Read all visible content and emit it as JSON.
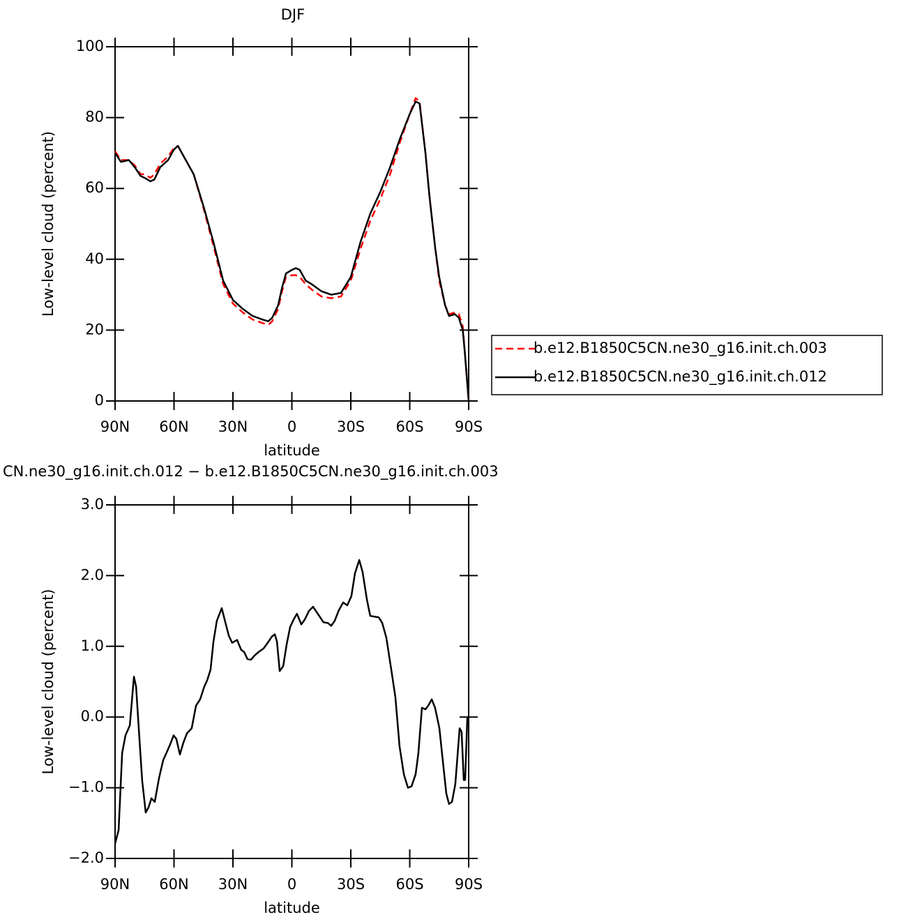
{
  "chart_data": [
    {
      "type": "line",
      "title": "DJF",
      "ylabel": "Low-level cloud (percent)",
      "xlabel": "latitude",
      "x": [
        90,
        87,
        83,
        80,
        77,
        75,
        72,
        70,
        67,
        63,
        60,
        58,
        55,
        50,
        45,
        40,
        35,
        30,
        25,
        20,
        15,
        12,
        10,
        7,
        5,
        3,
        0,
        -2,
        -4,
        -7,
        -10,
        -15,
        -20,
        -25,
        -30,
        -35,
        -40,
        -45,
        -50,
        -55,
        -60,
        -63,
        -65,
        -68,
        -70,
        -73,
        -75,
        -78,
        -80,
        -83,
        -85,
        -87,
        -88,
        -90
      ],
      "series": [
        {
          "name": "b.e12.B1850C5CN.ne30_g16.init.ch.003",
          "color": "#ff0000",
          "linestyle": "dashed",
          "values": [
            70.5,
            68,
            68,
            66.5,
            64,
            64,
            63,
            64,
            67,
            69,
            71.5,
            72,
            69,
            64,
            54.5,
            44,
            33,
            27.5,
            25,
            23,
            22,
            21.5,
            22.5,
            26,
            31,
            35,
            35.5,
            35.5,
            35,
            33,
            31.5,
            29.5,
            29,
            29.5,
            34,
            43,
            51,
            57,
            64,
            73,
            81,
            85.5,
            84.5,
            70,
            58,
            43,
            34,
            27,
            24.5,
            25,
            24.5,
            21,
            14,
            0
          ]
        },
        {
          "name": "b.e12.B1850C5CN.ne30_g16.init.ch.012",
          "color": "#000000",
          "linestyle": "solid",
          "values": [
            70,
            67.5,
            68,
            66,
            63.5,
            63,
            62,
            62.5,
            66,
            68,
            71,
            72,
            69,
            64,
            55,
            45,
            34,
            28.5,
            26,
            24,
            23,
            22.5,
            23.5,
            27,
            32,
            36,
            37,
            37.5,
            37,
            34,
            33,
            31,
            30,
            30.5,
            35,
            45,
            53,
            59,
            66,
            74,
            81,
            84.5,
            84,
            70,
            58,
            43,
            35,
            27,
            24,
            24.5,
            23.5,
            20,
            14,
            0
          ]
        }
      ],
      "xlim": [
        90,
        -90
      ],
      "xticks": [
        {
          "value": 90,
          "label": "90N"
        },
        {
          "value": 60,
          "label": "60N"
        },
        {
          "value": 30,
          "label": "30N"
        },
        0,
        {
          "value": -30,
          "label": "30S"
        },
        {
          "value": -60,
          "label": "60S"
        },
        {
          "value": -90,
          "label": "90S"
        }
      ],
      "ylim": [
        0,
        100
      ],
      "yticks": [
        0,
        20,
        40,
        60,
        80,
        100
      ],
      "legend": "right"
    },
    {
      "type": "line",
      "title": "CN.ne30_g16.init.ch.012 − b.e12.B1850C5CN.ne30_g16.init.ch.003",
      "ylabel": "Low-level cloud (percent)",
      "xlabel": "latitude",
      "color": "#000000",
      "x": [
        90,
        88.2,
        86.4,
        84.7,
        82.5,
        80.4,
        79.3,
        77.6,
        76.2,
        74.4,
        73,
        71.5,
        69.8,
        67.6,
        65.5,
        63.4,
        62,
        60.2,
        58.8,
        57,
        55.2,
        53.4,
        51,
        48.8,
        46.7,
        44.6,
        43.1,
        41.4,
        39.9,
        38.2,
        35.7,
        33.6,
        32.1,
        30.4,
        27.9,
        25.8,
        24.3,
        22.6,
        20.8,
        19,
        16.9,
        14.4,
        12.3,
        10.1,
        8.7,
        7.6,
        6.2,
        4.4,
        2.7,
        0.9,
        -0.9,
        -2.6,
        -4.8,
        -6.6,
        -8.7,
        -10.8,
        -12.2,
        -14.4,
        -16.1,
        -18.3,
        -20,
        -21.8,
        -23.9,
        -26.1,
        -28.2,
        -30.3,
        -32.1,
        -34.3,
        -36,
        -38.2,
        -39.9,
        -42.1,
        -44.2,
        -46,
        -48.1,
        -50.6,
        -52.7,
        -54.8,
        -57,
        -59.1,
        -60.9,
        -63,
        -64.4,
        -66.2,
        -68,
        -69.4,
        -71.2,
        -72.9,
        -75.1,
        -76.8,
        -78.6,
        -80,
        -81.5,
        -83.2,
        -85.4,
        -86.4,
        -87.5,
        -88.2,
        -89.3,
        -90
      ],
      "values": [
        -1.79,
        -1.6,
        -0.51,
        -0.26,
        -0.12,
        0.57,
        0.43,
        -0.31,
        -0.9,
        -1.35,
        -1.28,
        -1.15,
        -1.2,
        -0.86,
        -0.61,
        -0.48,
        -0.39,
        -0.26,
        -0.31,
        -0.53,
        -0.36,
        -0.23,
        -0.16,
        0.16,
        0.25,
        0.43,
        0.52,
        0.67,
        1.07,
        1.36,
        1.54,
        1.31,
        1.15,
        1.05,
        1.09,
        0.95,
        0.92,
        0.82,
        0.81,
        0.87,
        0.92,
        0.97,
        1.05,
        1.14,
        1.17,
        1.07,
        0.65,
        0.72,
        1.02,
        1.27,
        1.38,
        1.46,
        1.31,
        1.38,
        1.5,
        1.56,
        1.5,
        1.41,
        1.34,
        1.33,
        1.29,
        1.36,
        1.51,
        1.62,
        1.58,
        1.71,
        2.03,
        2.22,
        2.05,
        1.66,
        1.43,
        1.42,
        1.41,
        1.33,
        1.12,
        0.67,
        0.28,
        -0.41,
        -0.81,
        -1.0,
        -0.98,
        -0.81,
        -0.51,
        0.13,
        0.11,
        0.16,
        0.25,
        0.13,
        -0.16,
        -0.61,
        -1.08,
        -1.23,
        -1.2,
        -0.95,
        -0.16,
        -0.21,
        -0.89,
        -0.89,
        -0.02,
        0
      ],
      "xlim": [
        90,
        -90
      ],
      "xticks": [
        {
          "value": 90,
          "label": "90N"
        },
        {
          "value": 60,
          "label": "60N"
        },
        {
          "value": 30,
          "label": "30N"
        },
        0,
        {
          "value": -30,
          "label": "30S"
        },
        {
          "value": -60,
          "label": "60S"
        },
        {
          "value": -90,
          "label": "90S"
        }
      ],
      "ylim": [
        -2,
        3
      ],
      "yticks": [
        {
          "value": 3,
          "label": "3.0"
        },
        {
          "value": 2,
          "label": "2.0"
        },
        {
          "value": 1,
          "label": "1.0"
        },
        {
          "value": 0,
          "label": "0.0"
        },
        {
          "value": -1,
          "label": "−1.0"
        },
        {
          "value": -2,
          "label": "−2.0"
        }
      ]
    }
  ]
}
